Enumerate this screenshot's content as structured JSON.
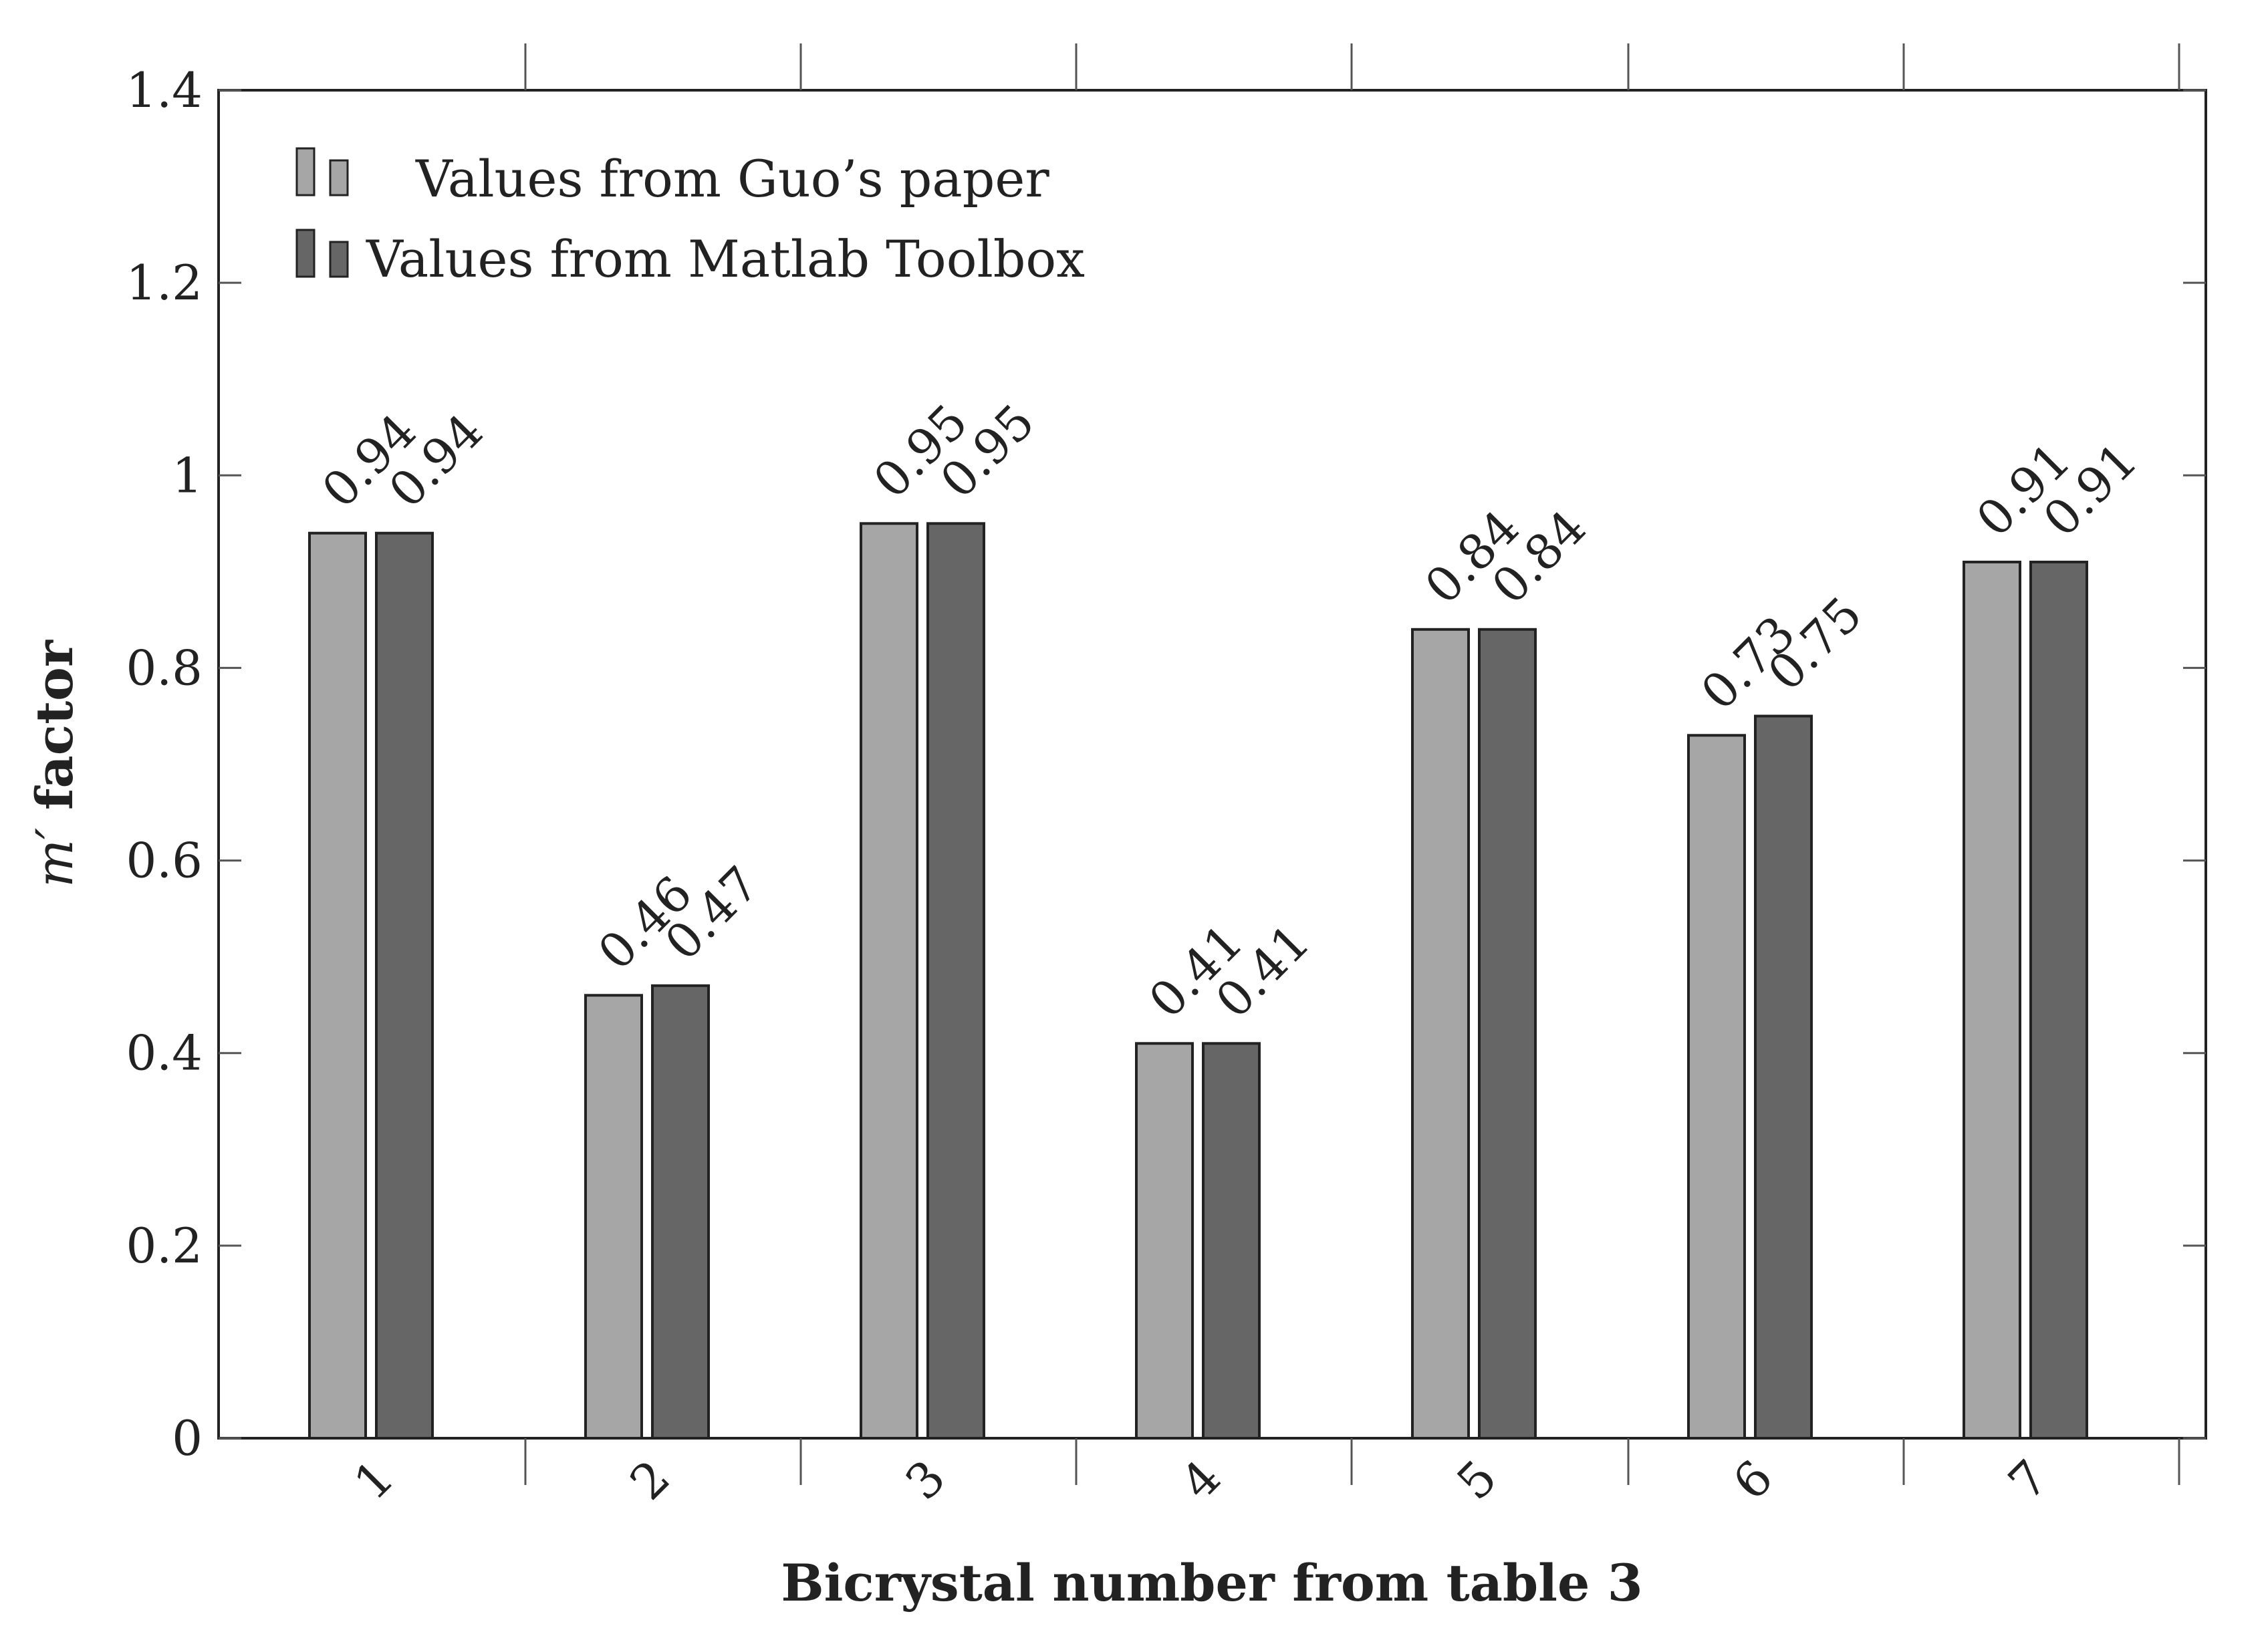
{
  "chart_data": {
    "type": "bar",
    "xlabel": "Bicrystal number from table 3",
    "ylabel_symbol": "m′",
    "ylabel_text": " factor",
    "categories": [
      "1",
      "2",
      "3",
      "4",
      "5",
      "6",
      "7"
    ],
    "ylim": [
      0,
      1.4
    ],
    "yticks": [
      0,
      0.2,
      0.4,
      0.6,
      0.8,
      1,
      1.2,
      1.4
    ],
    "ytick_labels": [
      "0",
      "0.2",
      "0.4",
      "0.6",
      "0.8",
      "1",
      "1.2",
      "1.4"
    ],
    "grid": false,
    "legend_position": "top-left",
    "series": [
      {
        "name": "Values from Guo’s paper",
        "values": [
          0.94,
          0.46,
          0.95,
          0.41,
          0.84,
          0.73,
          0.91
        ],
        "labels": [
          "0.94",
          "0.46",
          "0.95",
          "0.41",
          "0.84",
          "0.73",
          "0.91"
        ],
        "color": "#a6a6a6"
      },
      {
        "name": "Values from Matlab Toolbox",
        "values": [
          0.94,
          0.47,
          0.95,
          0.41,
          0.84,
          0.75,
          0.91
        ],
        "labels": [
          "0.94",
          "0.47",
          "0.95",
          "0.41",
          "0.84",
          "0.75",
          "0.91"
        ],
        "color": "#666666"
      }
    ]
  }
}
